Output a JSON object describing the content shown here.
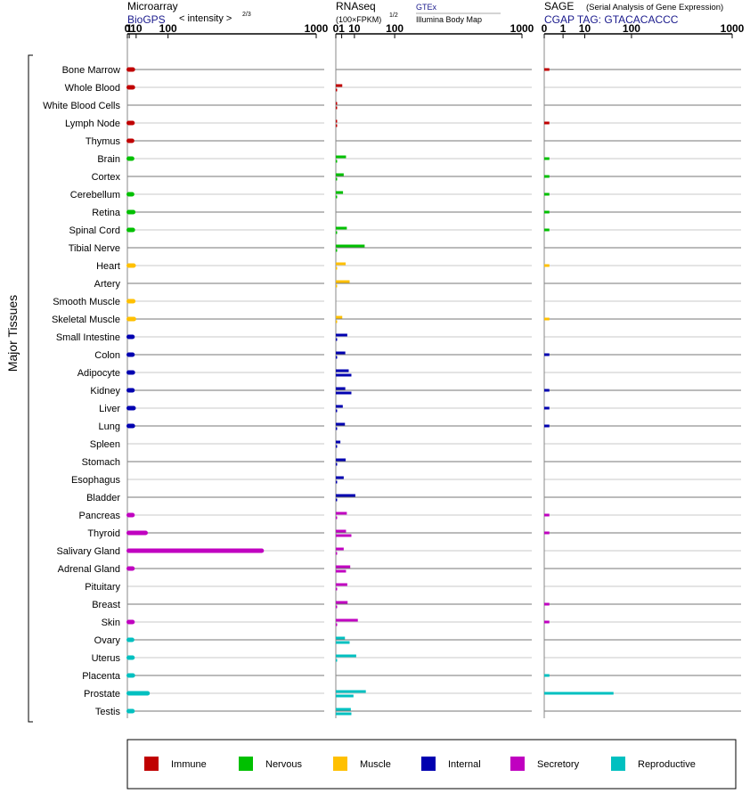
{
  "chart_data": {
    "type": "bar",
    "orientation": "horizontal",
    "y_axis_title": "Major Tissues",
    "tissues": [
      {
        "name": "Bone Marrow",
        "group": "Immune"
      },
      {
        "name": "Whole Blood",
        "group": "Immune"
      },
      {
        "name": "White Blood Cells",
        "group": "Immune"
      },
      {
        "name": "Lymph Node",
        "group": "Immune"
      },
      {
        "name": "Thymus",
        "group": "Immune"
      },
      {
        "name": "Brain",
        "group": "Nervous"
      },
      {
        "name": "Cortex",
        "group": "Nervous"
      },
      {
        "name": "Cerebellum",
        "group": "Nervous"
      },
      {
        "name": "Retina",
        "group": "Nervous"
      },
      {
        "name": "Spinal Cord",
        "group": "Nervous"
      },
      {
        "name": "Tibial Nerve",
        "group": "Nervous"
      },
      {
        "name": "Heart",
        "group": "Muscle"
      },
      {
        "name": "Artery",
        "group": "Muscle"
      },
      {
        "name": "Smooth Muscle",
        "group": "Muscle"
      },
      {
        "name": "Skeletal Muscle",
        "group": "Muscle"
      },
      {
        "name": "Small Intestine",
        "group": "Internal"
      },
      {
        "name": "Colon",
        "group": "Internal"
      },
      {
        "name": "Adipocyte",
        "group": "Internal"
      },
      {
        "name": "Kidney",
        "group": "Internal"
      },
      {
        "name": "Liver",
        "group": "Internal"
      },
      {
        "name": "Lung",
        "group": "Internal"
      },
      {
        "name": "Spleen",
        "group": "Internal"
      },
      {
        "name": "Stomach",
        "group": "Internal"
      },
      {
        "name": "Esophagus",
        "group": "Internal"
      },
      {
        "name": "Bladder",
        "group": "Internal"
      },
      {
        "name": "Pancreas",
        "group": "Secretory"
      },
      {
        "name": "Thyroid",
        "group": "Secretory"
      },
      {
        "name": "Salivary Gland",
        "group": "Secretory"
      },
      {
        "name": "Adrenal Gland",
        "group": "Secretory"
      },
      {
        "name": "Pituitary",
        "group": "Secretory"
      },
      {
        "name": "Breast",
        "group": "Secretory"
      },
      {
        "name": "Skin",
        "group": "Secretory"
      },
      {
        "name": "Ovary",
        "group": "Reproductive"
      },
      {
        "name": "Uterus",
        "group": "Reproductive"
      },
      {
        "name": "Placenta",
        "group": "Reproductive"
      },
      {
        "name": "Prostate",
        "group": "Reproductive"
      },
      {
        "name": "Testis",
        "group": "Reproductive"
      }
    ],
    "groups": [
      {
        "name": "Immune",
        "color": "#c00000"
      },
      {
        "name": "Nervous",
        "color": "#00c000"
      },
      {
        "name": "Muscle",
        "color": "#ffc000"
      },
      {
        "name": "Internal",
        "color": "#0000b0"
      },
      {
        "name": "Secretory",
        "color": "#c000c0"
      },
      {
        "name": "Reproductive",
        "color": "#00c0c0"
      }
    ],
    "panels": [
      {
        "id": "microarray",
        "title": "Microarray",
        "subtitle_link": "BioGPS",
        "subtitle_text": "< intensity >",
        "scale_exponent": "2/3",
        "scale_power": 0.6667,
        "axis_max": 1000,
        "ticks": [
          0,
          1,
          10,
          100,
          1000
        ],
        "bar_style": "thick-round",
        "values": [
          [
            5
          ],
          [
            5
          ],
          [],
          [
            4.5
          ],
          [
            4
          ],
          [
            4
          ],
          [],
          [
            4
          ],
          [
            5.5
          ],
          [
            5
          ],
          [],
          [
            6
          ],
          [],
          [
            5.5
          ],
          [
            6.5
          ],
          [
            4.5
          ],
          [
            4.5
          ],
          [
            5
          ],
          [
            4.5
          ],
          [
            6
          ],
          [
            5
          ],
          [],
          [],
          [],
          [],
          [
            4.5
          ],
          [
            30
          ],
          [
            600
          ],
          [
            4.5
          ],
          [],
          [],
          [
            4.5
          ],
          [
            4
          ],
          [
            4.5
          ],
          [
            5
          ],
          [
            35
          ],
          [
            4.5
          ]
        ]
      },
      {
        "id": "rnaseq",
        "title": "RNAseq",
        "subtitle_text": "(100×FPKM)",
        "scale_exponent": "1/2",
        "scale_power": 0.5,
        "source_link": "GTEx",
        "source_text": "Illumina Body Map",
        "axis_max": 1000,
        "ticks": [
          0,
          1,
          10,
          100,
          1000
        ],
        "bar_style": "thin",
        "values": [
          [],
          [
            1.2,
            0
          ],
          [
            0,
            0.01
          ],
          [
            0,
            0.01
          ],
          [],
          [
            3,
            0
          ],
          [
            1.8,
            0
          ],
          [
            1.5,
            0
          ],
          [],
          [
            3.5,
            0
          ],
          [
            24,
            0
          ],
          [
            2.8,
            0.01
          ],
          [
            5.5,
            0
          ],
          [],
          [
            1.2,
            0.02
          ],
          [
            3.8,
            0
          ],
          [
            2.6,
            0.02
          ],
          [
            4.8,
            7
          ],
          [
            2.6,
            7
          ],
          [
            1.4,
            0.02
          ],
          [
            2.4,
            0.03
          ],
          [
            0.6,
            0
          ],
          [
            2.8,
            0
          ],
          [
            1.8,
            0
          ],
          [
            11,
            0
          ],
          [
            3.5,
            0
          ],
          [
            3,
            7
          ],
          [
            1.8,
            0.01
          ],
          [
            6,
            3
          ],
          [
            3.8,
            0
          ],
          [
            4,
            0.02
          ],
          [
            14,
            0
          ],
          [
            2.4,
            5.5
          ],
          [
            12,
            0
          ],
          [],
          [
            26,
            9
          ],
          [
            6.5,
            7
          ]
        ]
      },
      {
        "id": "sage",
        "title": "SAGE",
        "title_note": "(Serial Analysis of Gene Expression)",
        "subtitle_link": "CGAP TAG: GTACACACCC",
        "scale_power": 0.3333,
        "axis_max": 1000,
        "ticks": [
          0,
          1,
          10,
          100,
          1000
        ],
        "bar_style": "tick",
        "values": [
          [
            0.02
          ],
          [],
          [],
          [
            0.02
          ],
          [],
          [
            0.02
          ],
          [
            0.02
          ],
          [
            0.02
          ],
          [
            0.02
          ],
          [
            0.02
          ],
          [],
          [
            0.02
          ],
          [],
          [],
          [
            0.02
          ],
          [],
          [
            0.02
          ],
          [],
          [
            0.02
          ],
          [
            0.02
          ],
          [
            0.02
          ],
          [],
          [],
          [],
          [],
          [
            0.02
          ],
          [
            0.02
          ],
          [],
          [],
          [],
          [
            0.02
          ],
          [
            0.02
          ],
          [],
          [],
          [
            0.02
          ],
          [
            50
          ],
          []
        ]
      }
    ]
  }
}
